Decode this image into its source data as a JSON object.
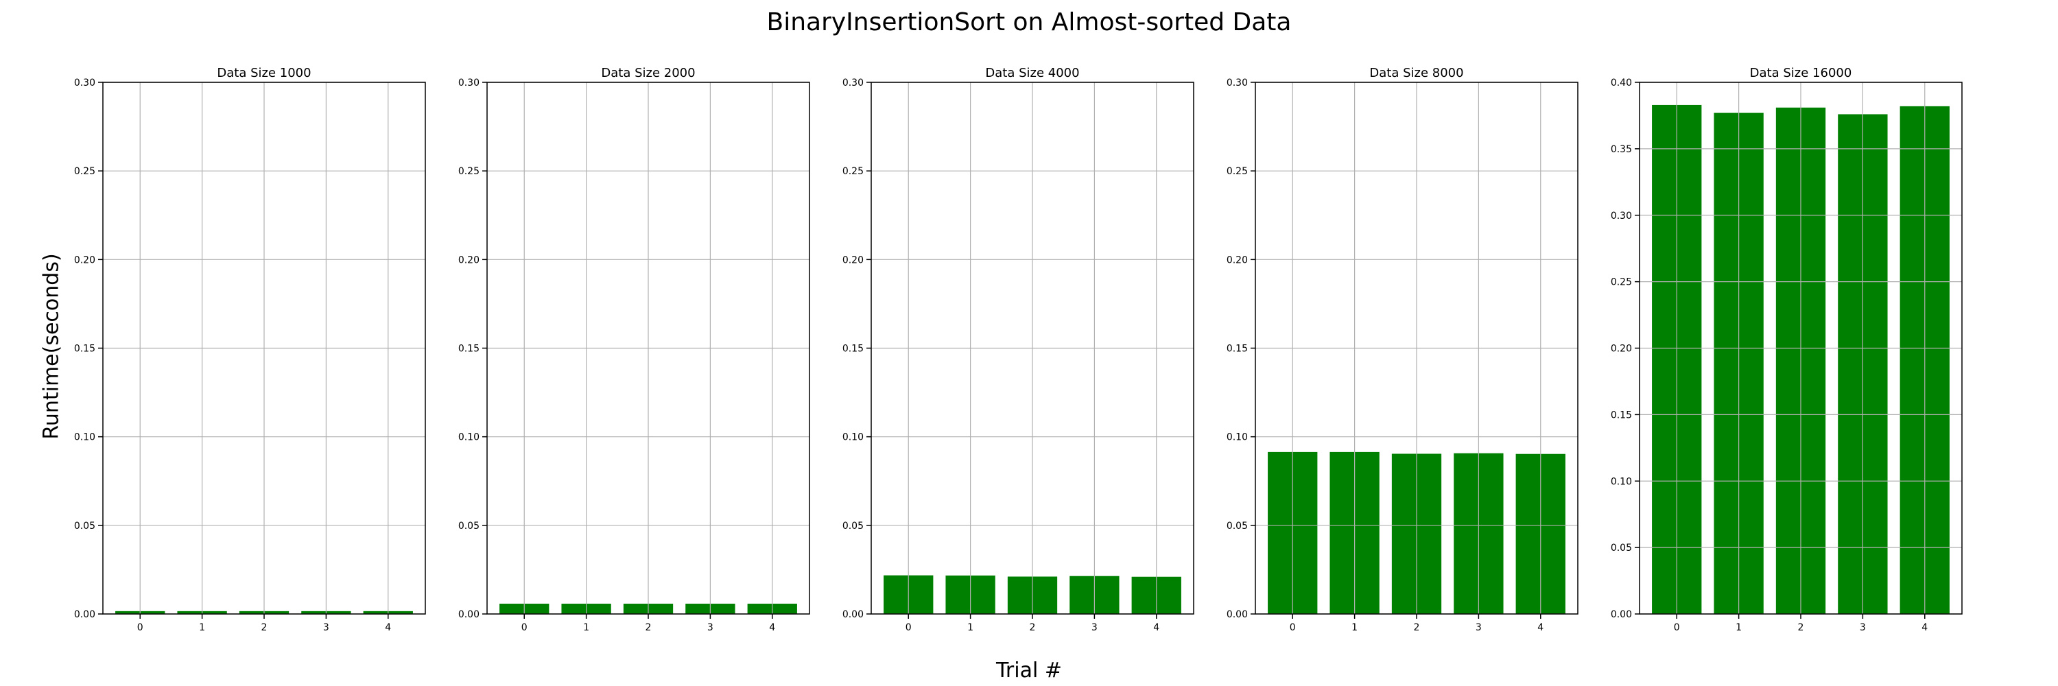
{
  "figure": {
    "title": "BinaryInsertionSort on Almost-sorted Data",
    "ylabel": "Runtime(seconds)",
    "xlabel": "Trial #"
  },
  "colors": {
    "bar": "#008000",
    "grid": "#b0b0b0",
    "axis": "#000000"
  },
  "chart_data": [
    {
      "type": "bar",
      "title": "Data Size 1000",
      "categories": [
        "0",
        "1",
        "2",
        "3",
        "4"
      ],
      "values": [
        0.0016,
        0.0016,
        0.0016,
        0.0016,
        0.0016
      ],
      "ylim": [
        0,
        0.3
      ],
      "yticks": [
        "0.00",
        "0.05",
        "0.10",
        "0.15",
        "0.20",
        "0.25",
        "0.30"
      ],
      "grid": true
    },
    {
      "type": "bar",
      "title": "Data Size 2000",
      "categories": [
        "0",
        "1",
        "2",
        "3",
        "4"
      ],
      "values": [
        0.0058,
        0.0058,
        0.0058,
        0.0058,
        0.0058
      ],
      "ylim": [
        0,
        0.3
      ],
      "yticks": [
        "0.00",
        "0.05",
        "0.10",
        "0.15",
        "0.20",
        "0.25",
        "0.30"
      ],
      "grid": true
    },
    {
      "type": "bar",
      "title": "Data Size 4000",
      "categories": [
        "0",
        "1",
        "2",
        "3",
        "4"
      ],
      "values": [
        0.0218,
        0.0217,
        0.0211,
        0.0214,
        0.021
      ],
      "ylim": [
        0,
        0.3
      ],
      "yticks": [
        "0.00",
        "0.05",
        "0.10",
        "0.15",
        "0.20",
        "0.25",
        "0.30"
      ],
      "grid": true
    },
    {
      "type": "bar",
      "title": "Data Size 8000",
      "categories": [
        "0",
        "1",
        "2",
        "3",
        "4"
      ],
      "values": [
        0.0914,
        0.0914,
        0.0904,
        0.0907,
        0.0903
      ],
      "ylim": [
        0,
        0.3
      ],
      "yticks": [
        "0.00",
        "0.05",
        "0.10",
        "0.15",
        "0.20",
        "0.25",
        "0.30"
      ],
      "grid": true
    },
    {
      "type": "bar",
      "title": "Data Size 16000",
      "categories": [
        "0",
        "1",
        "2",
        "3",
        "4"
      ],
      "values": [
        0.383,
        0.377,
        0.381,
        0.376,
        0.382
      ],
      "ylim": [
        0,
        0.4
      ],
      "yticks": [
        "0.00",
        "0.05",
        "0.10",
        "0.15",
        "0.20",
        "0.25",
        "0.30",
        "0.35",
        "0.40"
      ],
      "grid": true
    }
  ]
}
